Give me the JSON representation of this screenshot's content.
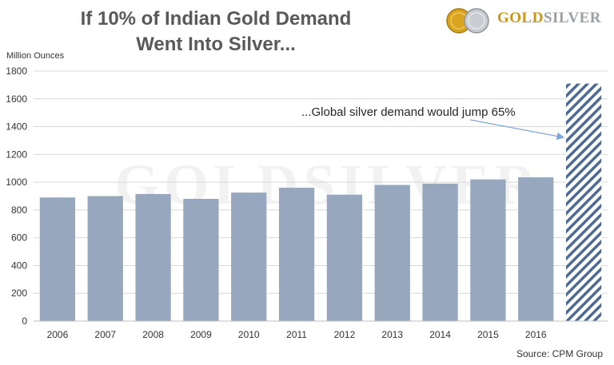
{
  "header": {
    "title_line1": "If 10% of Indian Gold Demand",
    "title_line2": "Went Into Silver..."
  },
  "logo": {
    "text_gold": "GOLD",
    "text_silver": "SILVER",
    "watermark": "GOLDSILVER"
  },
  "footer": {
    "source": "Source: CPM Group"
  },
  "colors": {
    "bar": "#97a7bd",
    "hatch": "#4f6a92",
    "grid": "#d9d9d9",
    "title": "#595959",
    "annotation_arrow": "#7ea6d6"
  },
  "chart_data": {
    "type": "bar",
    "categories": [
      "2006",
      "2007",
      "2008",
      "2009",
      "2010",
      "2011",
      "2012",
      "2013",
      "2014",
      "2015",
      "2016",
      ""
    ],
    "values": [
      890,
      900,
      915,
      880,
      925,
      960,
      910,
      980,
      990,
      1020,
      1035,
      1710
    ],
    "hatched_last_bar": true,
    "ylabel": "Million Ounces",
    "ylim": [
      0,
      1800
    ],
    "yticks": [
      0,
      200,
      400,
      600,
      800,
      1000,
      1200,
      1400,
      1600,
      1800
    ],
    "grid": true,
    "annotation": "...Global silver demand would jump 65%"
  }
}
